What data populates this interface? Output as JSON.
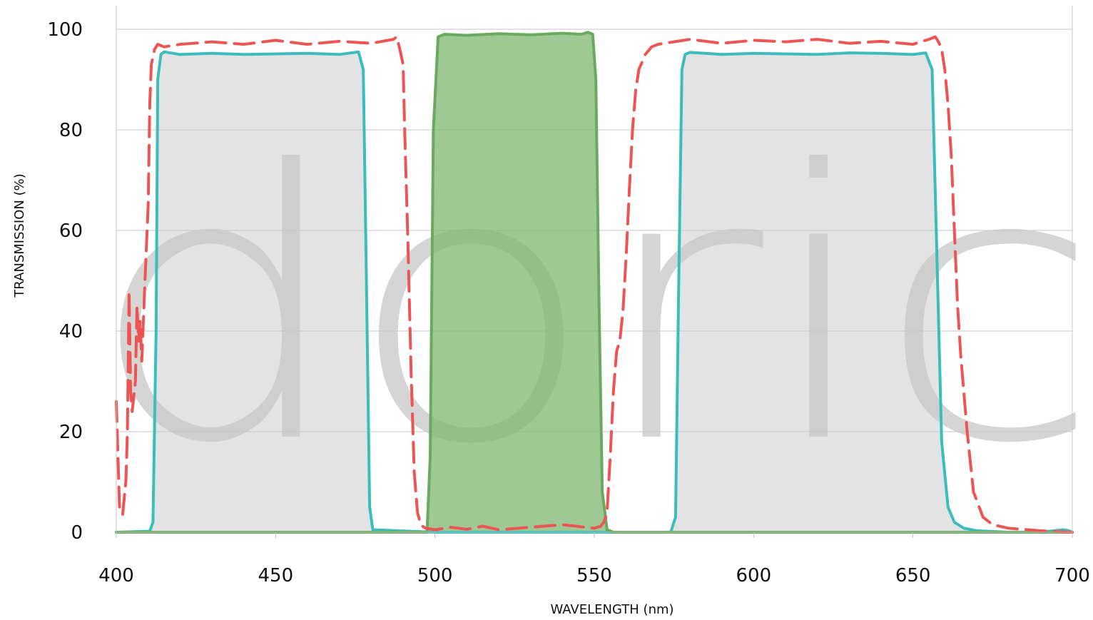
{
  "chart_data": {
    "type": "line",
    "xlabel": "WAVELENGTH (nm)",
    "ylabel": "TRANSMISSION (%)",
    "xlim": [
      400,
      700
    ],
    "ylim": [
      0,
      100
    ],
    "xticks": [
      400,
      450,
      500,
      550,
      600,
      650,
      700
    ],
    "yticks": [
      0,
      20,
      40,
      60,
      80,
      100
    ],
    "grid": "horizontal",
    "watermark": "doric",
    "series": [
      {
        "style": "solid-teal-filled-gray",
        "color": "#3dbcbc",
        "fill": "#c8c8c8",
        "x": [
          400,
          410.5,
          411.5,
          412.5,
          413,
          414,
          415,
          420,
          430,
          440,
          450,
          460,
          470,
          476,
          477.5,
          478.5,
          479.5,
          480.5,
          500,
          550,
          574,
          575.5,
          576.5,
          577.5,
          578.5,
          580,
          590,
          600,
          610,
          620,
          630,
          640,
          650,
          654,
          656,
          657.5,
          659,
          661,
          663,
          666,
          670,
          680,
          690,
          697,
          699,
          700
        ],
        "y": [
          0,
          0.2,
          2,
          40,
          90,
          95,
          95.5,
          95,
          95.2,
          95,
          95.1,
          95.2,
          95,
          95.5,
          92,
          50,
          5,
          0.5,
          0,
          0,
          0,
          3,
          50,
          92,
          95,
          95.4,
          95,
          95.2,
          95.1,
          95,
          95.3,
          95.2,
          95,
          95.3,
          92,
          55,
          18,
          5,
          2,
          0.8,
          0.3,
          0,
          0,
          0.5,
          0.3,
          0
        ]
      },
      {
        "style": "solid-green-filled-green",
        "color": "#6aaa5e",
        "fill": "#7db76f",
        "x": [
          400,
          497.5,
          498.5,
          499.5,
          501,
          503,
          510,
          520,
          530,
          540,
          546,
          548,
          549.5,
          550.5,
          551.5,
          552.5,
          554,
          556,
          700
        ],
        "y": [
          0,
          0,
          15,
          80,
          98.5,
          99,
          98.8,
          99.1,
          98.9,
          99.2,
          99,
          99.4,
          99,
          90,
          45,
          8,
          0.5,
          0,
          0
        ]
      },
      {
        "style": "dashed-red",
        "color": "#ec5553",
        "x": [
          400,
          401,
          402,
          403,
          403.5,
          404,
          404.5,
          405,
          406,
          406.5,
          407,
          407.5,
          408,
          409,
          410,
          410.5,
          411,
          412,
          413,
          415,
          420,
          430,
          440,
          450,
          460,
          470,
          480,
          487,
          488,
          489,
          490,
          490.5,
          491.5,
          492.5,
          493.5,
          494.5,
          495.5,
          497,
          500,
          505,
          510,
          515,
          520,
          530,
          540,
          550,
          552,
          553,
          554,
          555,
          556,
          557,
          558,
          559,
          560,
          561,
          562,
          563,
          564,
          566,
          568,
          570,
          575,
          580,
          590,
          600,
          610,
          620,
          630,
          640,
          650,
          655,
          657,
          658,
          659,
          660,
          661,
          662,
          663,
          664,
          665,
          667,
          669,
          672,
          675,
          680,
          690,
          700
        ],
        "y": [
          26,
          5,
          3.5,
          10,
          20,
          48,
          28,
          24,
          30,
          45,
          38,
          42,
          34,
          50,
          65,
          85,
          93,
          96,
          97,
          96.5,
          97,
          97.5,
          97,
          97.8,
          97,
          97.6,
          97.2,
          98,
          98.5,
          96,
          93,
          80,
          58,
          32,
          12,
          4,
          1.5,
          0.8,
          0.5,
          1,
          0.6,
          1.2,
          0.5,
          1,
          1.5,
          0.8,
          1.2,
          2,
          4,
          15,
          28,
          36,
          38,
          44,
          55,
          68,
          80,
          88,
          92,
          95,
          96.5,
          97,
          97.5,
          98,
          97.2,
          97.8,
          97.5,
          98,
          97.2,
          97.6,
          97,
          98,
          98.5,
          97.5,
          96,
          92,
          85,
          75,
          60,
          45,
          35,
          20,
          8,
          3,
          1.5,
          0.8,
          0.3,
          0
        ]
      }
    ]
  }
}
